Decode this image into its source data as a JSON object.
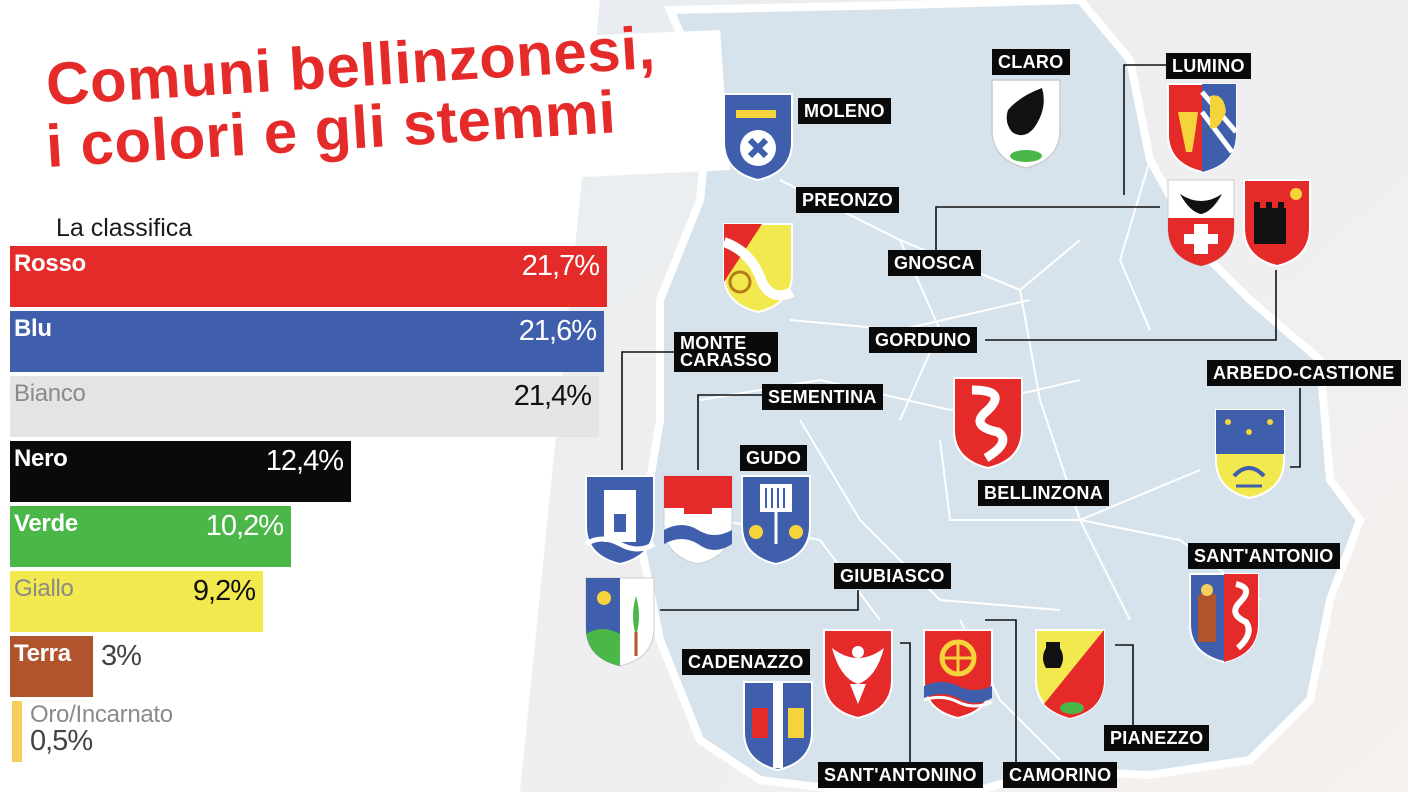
{
  "title": {
    "line1": "Comuni bellinzonesi,",
    "line2": "i colori e gli stemmi"
  },
  "subtitle": "La classifica",
  "colors": {
    "accent": "#e52a2a",
    "map_fill": "#d7e3ec",
    "rosso": "#e52a2a",
    "blu": "#3f5eac",
    "bianco": "#e4e4e4",
    "nero": "#0a0a0a",
    "verde": "#4bb748",
    "giallo": "#f2e94e",
    "terra": "#b0542e",
    "oro": "#f5ce5d"
  },
  "chart_data": {
    "type": "bar",
    "orientation": "horizontal",
    "title": "La classifica",
    "categories": [
      "Rosso",
      "Blu",
      "Bianco",
      "Nero",
      "Verde",
      "Giallo",
      "Terra",
      "Oro/Incarnato"
    ],
    "values": [
      21.7,
      21.6,
      21.4,
      12.4,
      10.2,
      9.2,
      3,
      0.5
    ],
    "value_labels": [
      "21,7%",
      "21,6%",
      "21,4%",
      "12,4%",
      "10,2%",
      "9,2%",
      "3%",
      "0,5%"
    ],
    "bar_colors": [
      "#e52a2a",
      "#3f5eac",
      "#e4e4e4",
      "#0a0a0a",
      "#4bb748",
      "#f2e94e",
      "#b0542e",
      "#f5ce5d"
    ],
    "label_colors": [
      "#ffffff",
      "#ffffff",
      "#8a8a8a",
      "#ffffff",
      "#ffffff",
      "#8a8a8a",
      "#ffffff",
      "#8a8a8a"
    ],
    "value_colors": [
      "#ffffff",
      "#ffffff",
      "#111111",
      "#ffffff",
      "#ffffff",
      "#111111",
      "#444444",
      "#444444"
    ],
    "xlim": [
      0,
      21.7
    ]
  },
  "municipalities": [
    "CLARO",
    "LUMINO",
    "MOLENO",
    "PREONZO",
    "GNOSCA",
    "GORDUNO",
    "MONTE\nCARASSO",
    "SEMENTINA",
    "GUDO",
    "ARBEDO-CASTIONE",
    "BELLINZONA",
    "SANT'ANTONIO",
    "GIUBIASCO",
    "CADENAZZO",
    "PIANEZZO",
    "SANT'ANTONINO",
    "CAMORINO"
  ]
}
